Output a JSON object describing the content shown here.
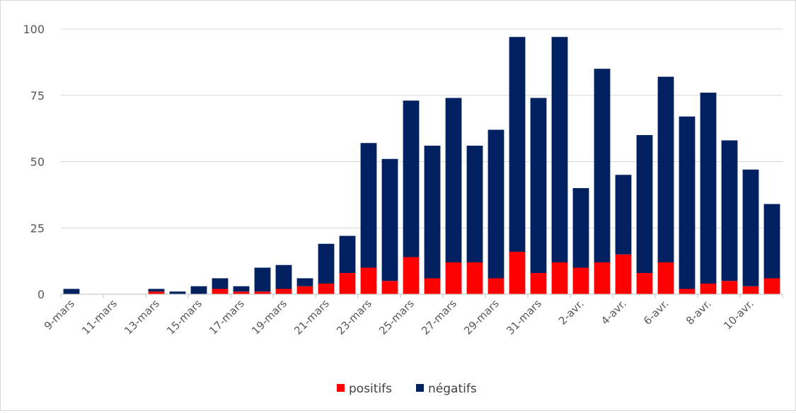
{
  "chart_data": {
    "type": "bar",
    "stacked": true,
    "categories": [
      "9-mars",
      "10-mars",
      "11-mars",
      "12-mars",
      "13-mars",
      "14-mars",
      "15-mars",
      "16-mars",
      "17-mars",
      "18-mars",
      "19-mars",
      "20-mars",
      "21-mars",
      "22-mars",
      "23-mars",
      "24-mars",
      "25-mars",
      "26-mars",
      "27-mars",
      "28-mars",
      "29-mars",
      "30-mars",
      "31-mars",
      "1-avr.",
      "2-avr.",
      "3-avr.",
      "4-avr.",
      "5-avr.",
      "6-avr.",
      "7-avr.",
      "8-avr.",
      "9-avr.",
      "10-avr.",
      "11-avr."
    ],
    "tick_labels": [
      "9-mars",
      "11-mars",
      "13-mars",
      "15-mars",
      "17-mars",
      "19-mars",
      "21-mars",
      "23-mars",
      "25-mars",
      "27-mars",
      "29-mars",
      "31-mars",
      "2-avr.",
      "4-avr.",
      "6-avr.",
      "8-avr.",
      "10-avr."
    ],
    "series": [
      {
        "name": "positifs",
        "color": "#ff0000",
        "values": [
          0,
          0,
          0,
          0,
          1,
          0,
          0,
          2,
          1,
          1,
          2,
          3,
          4,
          8,
          10,
          5,
          14,
          6,
          12,
          12,
          6,
          16,
          8,
          12,
          10,
          12,
          15,
          8,
          12,
          2,
          4,
          5,
          3,
          6
        ]
      },
      {
        "name": "négatifs",
        "color": "#002060",
        "values": [
          2,
          0,
          0,
          0,
          1,
          1,
          3,
          4,
          2,
          9,
          9,
          3,
          15,
          14,
          47,
          46,
          59,
          50,
          62,
          44,
          56,
          81,
          66,
          85,
          30,
          73,
          30,
          52,
          70,
          65,
          72,
          53,
          44,
          28
        ]
      }
    ],
    "yticks": [
      0,
      25,
      50,
      75,
      100
    ],
    "ylim": [
      0,
      100
    ],
    "grid": true,
    "legend_position": "bottom"
  }
}
